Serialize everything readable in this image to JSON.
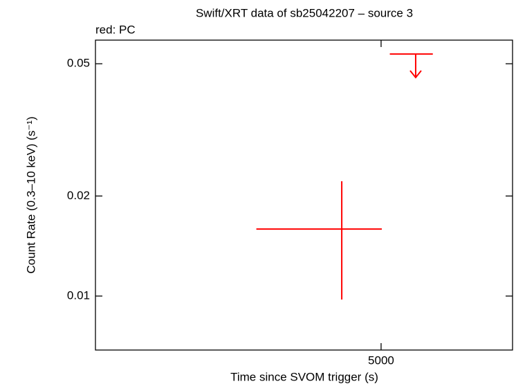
{
  "chart_data": {
    "type": "errorbar",
    "title": "Swift/XRT data of sb25042207 – source 3",
    "subtitle": "red: PC",
    "x_label": "Time since SVOM trigger (s)",
    "y_label": "Count Rate (0.3–10 keV) (s⁻¹)",
    "xlog": true,
    "ylog": true,
    "color": "#ff0000",
    "xlim": [
      2648,
      6699
    ],
    "ylim": [
      0.00688,
      0.0589
    ],
    "xticks": [
      5000
    ],
    "yticks": [
      0.01,
      0.02,
      0.05
    ],
    "points": {
      "x": [
        4581
      ],
      "x_err_minus": [
        793
      ],
      "x_err_plus": [
        427
      ],
      "y": [
        0.01591
      ],
      "y_err_minus": [
        0.00615
      ],
      "y_err_plus": [
        0.00624
      ]
    },
    "upper_limits": {
      "x": [
        5400
      ],
      "x_err_minus": [
        302
      ],
      "x_err_plus": [
        210
      ],
      "y": [
        0.0535
      ]
    }
  }
}
